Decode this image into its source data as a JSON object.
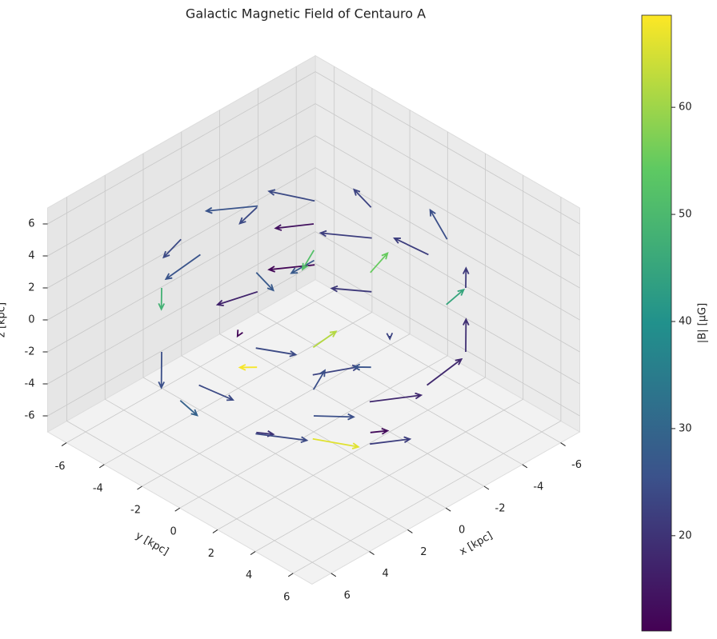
{
  "chart_data": {
    "type": "quiver3d",
    "title": "Galactic Magnetic Field of Centauro A",
    "x_label": "x [kpc]",
    "y_label": "y [kpc]",
    "z_label": "z [kpc]",
    "xlim": [
      -7,
      7
    ],
    "ylim": [
      -7,
      7
    ],
    "zlim": [
      -7,
      7
    ],
    "xticks": [
      -6,
      -4,
      -2,
      0,
      2,
      4,
      6
    ],
    "yticks": [
      -6,
      -4,
      -2,
      0,
      2,
      4,
      6
    ],
    "zticks": [
      -6,
      -4,
      -2,
      0,
      2,
      4,
      6
    ],
    "grid": true,
    "colorbar_label": "|B| [μG]",
    "clim": [
      11.1,
      68.6
    ],
    "cticks": [
      20,
      30,
      40,
      50,
      60
    ],
    "colormap": [
      "#440154",
      "#3b528b",
      "#21918c",
      "#5ec962",
      "#fde725"
    ],
    "x": [
      6,
      -6,
      0,
      0,
      0,
      0,
      4,
      -4,
      4,
      -4,
      4,
      -4,
      4,
      -4,
      3,
      -3,
      0,
      0,
      3,
      -3,
      0,
      0,
      5,
      2,
      -5,
      -2,
      5,
      -2,
      2,
      -5,
      2,
      -2,
      2,
      -2,
      1,
      -1,
      6,
      3,
      -3,
      -6
    ],
    "y": [
      0,
      0,
      6,
      -6,
      0,
      0,
      4,
      4,
      -4,
      -4,
      4,
      4,
      -4,
      -4,
      0,
      0,
      3,
      -3,
      0,
      0,
      3,
      -3,
      2,
      5,
      2,
      -5,
      -2,
      5,
      -5,
      -2,
      2,
      2,
      -2,
      -2,
      1,
      -1,
      3,
      6,
      -6,
      -3
    ],
    "z": [
      0,
      0,
      0,
      0,
      6,
      -6,
      2,
      2,
      2,
      2,
      -2,
      -2,
      -2,
      -2,
      5,
      5,
      5,
      5,
      -5,
      -5,
      -5,
      -5,
      3,
      -3,
      3,
      -3,
      -3,
      3,
      3,
      -3,
      1,
      -1,
      -1,
      1,
      -3,
      3,
      -1,
      1,
      1,
      -1
    ],
    "u": [
      0,
      0,
      -1.8,
      1.8,
      1.2,
      -1,
      -1.2,
      -1.2,
      1.2,
      1.2,
      -1.2,
      -1.2,
      1.2,
      1.2,
      0,
      0,
      -0.9,
      0.9,
      0,
      0,
      -0.9,
      0.9,
      -0.6,
      -1.5,
      -0.6,
      1.5,
      0.6,
      -1.5,
      1.5,
      0.6,
      -0.6,
      -0.6,
      0.6,
      0.6,
      -0.3,
      0.3,
      -0.9,
      -1.8,
      1.8,
      0.9
    ],
    "v": [
      1.8,
      -1.8,
      0,
      0,
      -0.8,
      1.1,
      1.2,
      -1.2,
      1.2,
      -1.2,
      1.2,
      -1.2,
      1.2,
      -1.2,
      0.9,
      -0.9,
      0,
      0,
      0.9,
      -0.9,
      0,
      0,
      1.5,
      0.6,
      -1.5,
      -0.6,
      1.5,
      -0.6,
      0.6,
      -1.5,
      0.6,
      -0.6,
      0.6,
      -0.6,
      0.3,
      -0.3,
      1.8,
      0.9,
      -0.9,
      -1.8
    ],
    "w": [
      0.3,
      -0.2,
      0.4,
      -0.3,
      0,
      0,
      0.5,
      -0.4,
      0.3,
      0.6,
      -0.5,
      0.4,
      -0.6,
      -0.3,
      -0.5,
      0.5,
      0.6,
      -0.4,
      0.5,
      -0.6,
      -0.5,
      0.6,
      0.2,
      -0.3,
      0.4,
      -0.2,
      0.5,
      -0.5,
      0.3,
      -0.4,
      1,
      -1,
      0.8,
      -0.8,
      1.2,
      -1.2,
      0.2,
      -0.2,
      0.3,
      -0.3
    ],
    "magnitude": [
      24,
      22,
      18,
      26,
      14,
      25,
      23,
      21,
      48,
      24,
      66,
      19,
      25,
      12,
      27,
      23,
      55,
      24,
      20,
      26,
      13,
      68,
      24,
      22,
      25,
      17,
      29,
      45,
      24,
      21,
      62,
      23,
      12,
      27,
      25,
      52,
      24,
      18,
      26,
      22
    ]
  }
}
